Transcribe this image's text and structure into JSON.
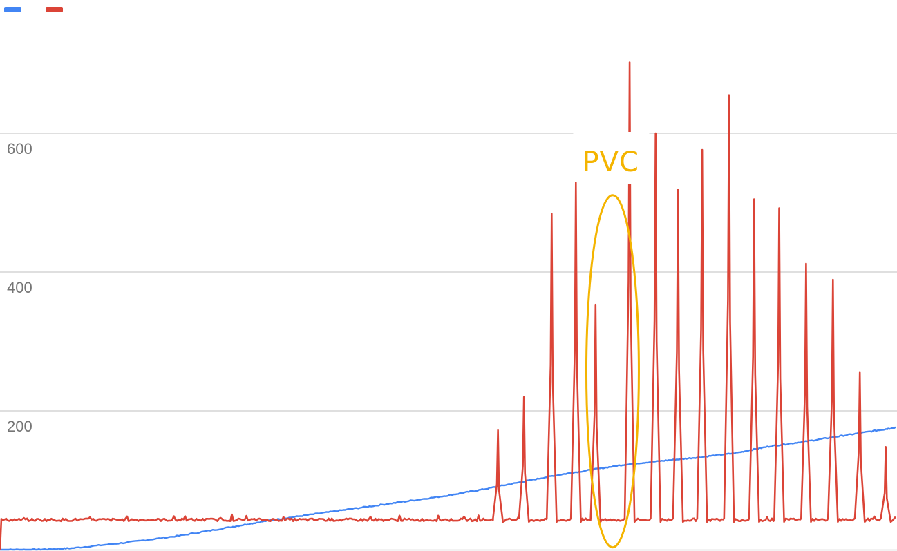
{
  "colors": {
    "background": "#ffffff",
    "grid": "#cccccc",
    "series_blue": "#4285F4",
    "series_red": "#DB4437",
    "annotation": "#F4B400",
    "tick_text": "#757575"
  },
  "chart_data": {
    "type": "line",
    "title": "",
    "xlabel": "",
    "ylabel": "",
    "x_range": [
      0,
      100
    ],
    "ylim": [
      0,
      700
    ],
    "yticks": [
      200,
      400,
      600
    ],
    "ytick_labels": [
      "200",
      "400",
      "600"
    ],
    "grid": true,
    "legend_position": "top-left",
    "series": [
      {
        "color": "#4285F4",
        "points": [
          [
            0,
            0
          ],
          [
            4,
            0
          ],
          [
            8,
            2
          ],
          [
            14,
            10
          ],
          [
            20,
            20
          ],
          [
            26,
            33
          ],
          [
            30,
            42
          ],
          [
            35,
            51
          ],
          [
            40,
            60
          ],
          [
            45,
            69
          ],
          [
            50,
            78
          ],
          [
            54,
            87
          ],
          [
            58,
            97
          ],
          [
            62,
            107
          ],
          [
            66,
            115
          ],
          [
            70,
            123
          ],
          [
            74,
            128
          ],
          [
            78,
            133
          ],
          [
            82,
            139
          ],
          [
            86,
            149
          ],
          [
            90,
            156
          ],
          [
            94,
            164
          ],
          [
            98,
            172
          ],
          [
            100,
            176
          ]
        ]
      },
      {
        "color": "#DB4437",
        "baseline": 43,
        "spikes": [
          {
            "x": 55.6,
            "y": 172
          },
          {
            "x": 58.5,
            "y": 220
          },
          {
            "x": 61.6,
            "y": 484
          },
          {
            "x": 64.3,
            "y": 529
          },
          {
            "x": 66.5,
            "y": 353
          },
          {
            "x": 70.3,
            "y": 702
          },
          {
            "x": 73.2,
            "y": 600
          },
          {
            "x": 75.7,
            "y": 519
          },
          {
            "x": 78.4,
            "y": 576
          },
          {
            "x": 81.4,
            "y": 655
          },
          {
            "x": 84.2,
            "y": 505
          },
          {
            "x": 87.0,
            "y": 492
          },
          {
            "x": 90.0,
            "y": 412
          },
          {
            "x": 93.0,
            "y": 389
          },
          {
            "x": 96.0,
            "y": 255
          },
          {
            "x": 98.9,
            "y": 148
          }
        ]
      }
    ],
    "annotations": [
      {
        "text": "PVC",
        "shape": "ellipse",
        "x": 68.4,
        "y_center": 257,
        "highlights_spike_x": 66.5
      }
    ]
  }
}
